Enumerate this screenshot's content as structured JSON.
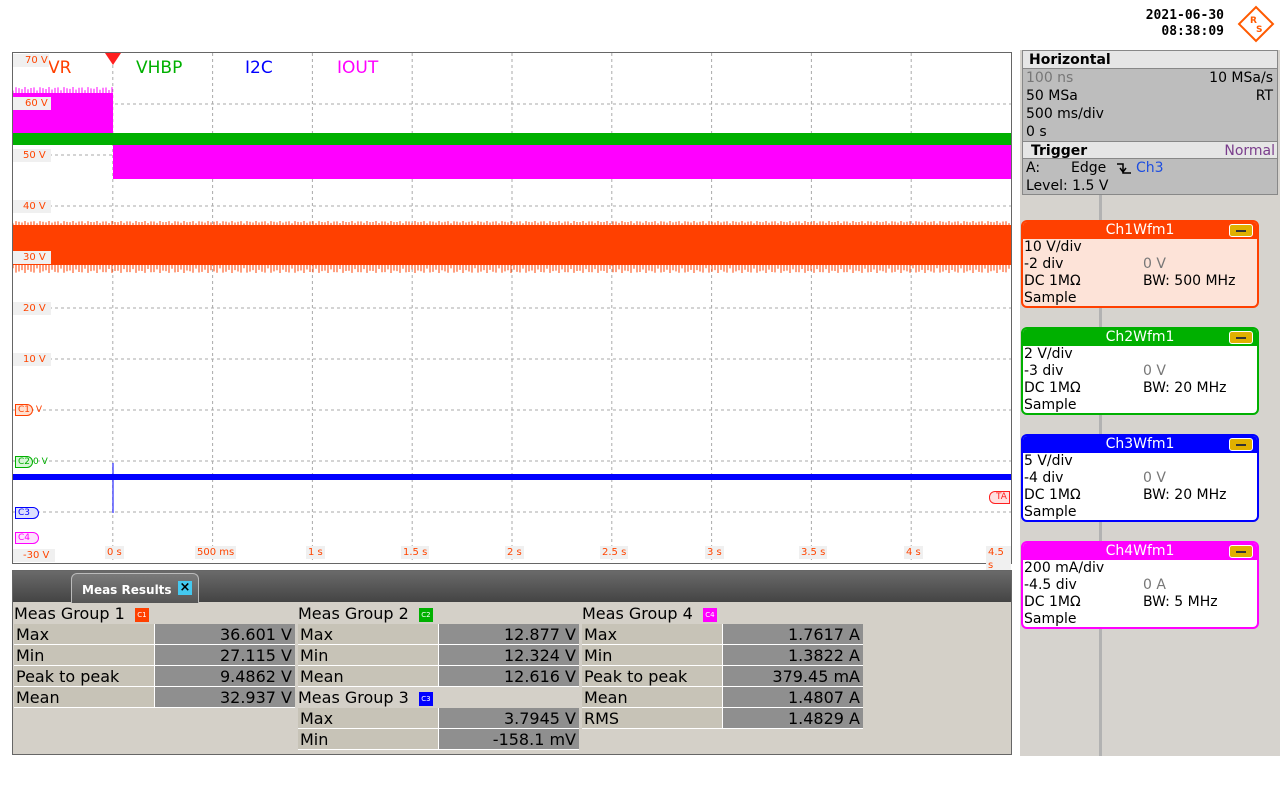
{
  "header": {
    "date": "2021-06-30",
    "time": "08:38:09"
  },
  "colors": {
    "ch1": "#ff4000",
    "ch2": "#00b000",
    "ch3": "#0000ff",
    "ch4": "#ff00ff"
  },
  "scope": {
    "channel_labels": [
      "VR",
      "VHBP",
      "I2C",
      "IOUT"
    ],
    "y_ticks": [
      "70 V",
      "60 V",
      "50 V",
      "40 V",
      "30 V",
      "20 V",
      "10 V",
      "-30 V"
    ],
    "x_ticks": [
      "0 s",
      "500 ms",
      "1 s",
      "1.5 s",
      "2 s",
      "2.5 s",
      "3 s",
      "3.5 s",
      "4 s",
      "4.5 s"
    ],
    "markers": {
      "c1": "C1",
      "c1_unit": "V",
      "c2": "C2",
      "c2_unit": "0 V",
      "c3": "C3",
      "c4": "C4",
      "trigger_arrow": "TA"
    }
  },
  "meas": {
    "tab_label": "Meas Results",
    "group1": {
      "title": "Meas Group 1",
      "badge": "C1",
      "rows": [
        {
          "name": "Max",
          "value": "36.601 V"
        },
        {
          "name": "Min",
          "value": "27.115 V"
        },
        {
          "name": "Peak to peak",
          "value": "9.4862 V"
        },
        {
          "name": "Mean",
          "value": "32.937 V"
        }
      ]
    },
    "group2": {
      "title": "Meas Group 2",
      "badge": "C2",
      "rows": [
        {
          "name": "Max",
          "value": "12.877 V"
        },
        {
          "name": "Min",
          "value": "12.324 V"
        },
        {
          "name": "Mean",
          "value": "12.616 V"
        }
      ]
    },
    "group3": {
      "title": "Meas Group 3",
      "badge": "C3",
      "rows": [
        {
          "name": "Max",
          "value": "3.7945 V"
        },
        {
          "name": "Min",
          "value": "-158.1 mV"
        }
      ]
    },
    "group4": {
      "title": "Meas Group 4",
      "badge": "C4",
      "rows": [
        {
          "name": "Max",
          "value": "1.7617 A"
        },
        {
          "name": "Min",
          "value": "1.3822 A"
        },
        {
          "name": "Peak to peak",
          "value": "379.45 mA"
        },
        {
          "name": "Mean",
          "value": "1.4807 A"
        },
        {
          "name": "RMS",
          "value": "1.4829 A"
        }
      ]
    }
  },
  "horizontal": {
    "title": "Horizontal",
    "resolution": "100 ns",
    "record_rate": "10 MSa/s",
    "sample_rate": "50 MSa",
    "mode": "RT",
    "time_scale": "500 ms/div",
    "position": "0 s"
  },
  "trigger": {
    "title": "Trigger",
    "mode": "Normal",
    "source_label": "A:",
    "type": "Edge",
    "slope_icon": "falling-edge-icon",
    "channel": "Ch3",
    "level": "Level: 1.5 V"
  },
  "channels": [
    {
      "title": "Ch1Wfm1",
      "scale": "10 V/div",
      "offset": "-2 div",
      "offset_val": "0 V",
      "coupling": "DC 1MΩ",
      "bw": "BW: 500 MHz",
      "acq": "Sample"
    },
    {
      "title": "Ch2Wfm1",
      "scale": "2 V/div",
      "offset": "-3 div",
      "offset_val": "0 V",
      "coupling": "DC 1MΩ",
      "bw": "BW: 20 MHz",
      "acq": "Sample"
    },
    {
      "title": "Ch3Wfm1",
      "scale": "5 V/div",
      "offset": "-4 div",
      "offset_val": "0 V",
      "coupling": "DC 1MΩ",
      "bw": "BW: 20 MHz",
      "acq": "Sample"
    },
    {
      "title": "Ch4Wfm1",
      "scale": "200 mA/div",
      "offset": "-4.5 div",
      "offset_val": "0 A",
      "coupling": "DC 1MΩ",
      "bw": "BW: 5 MHz",
      "acq": "Sample"
    }
  ]
}
